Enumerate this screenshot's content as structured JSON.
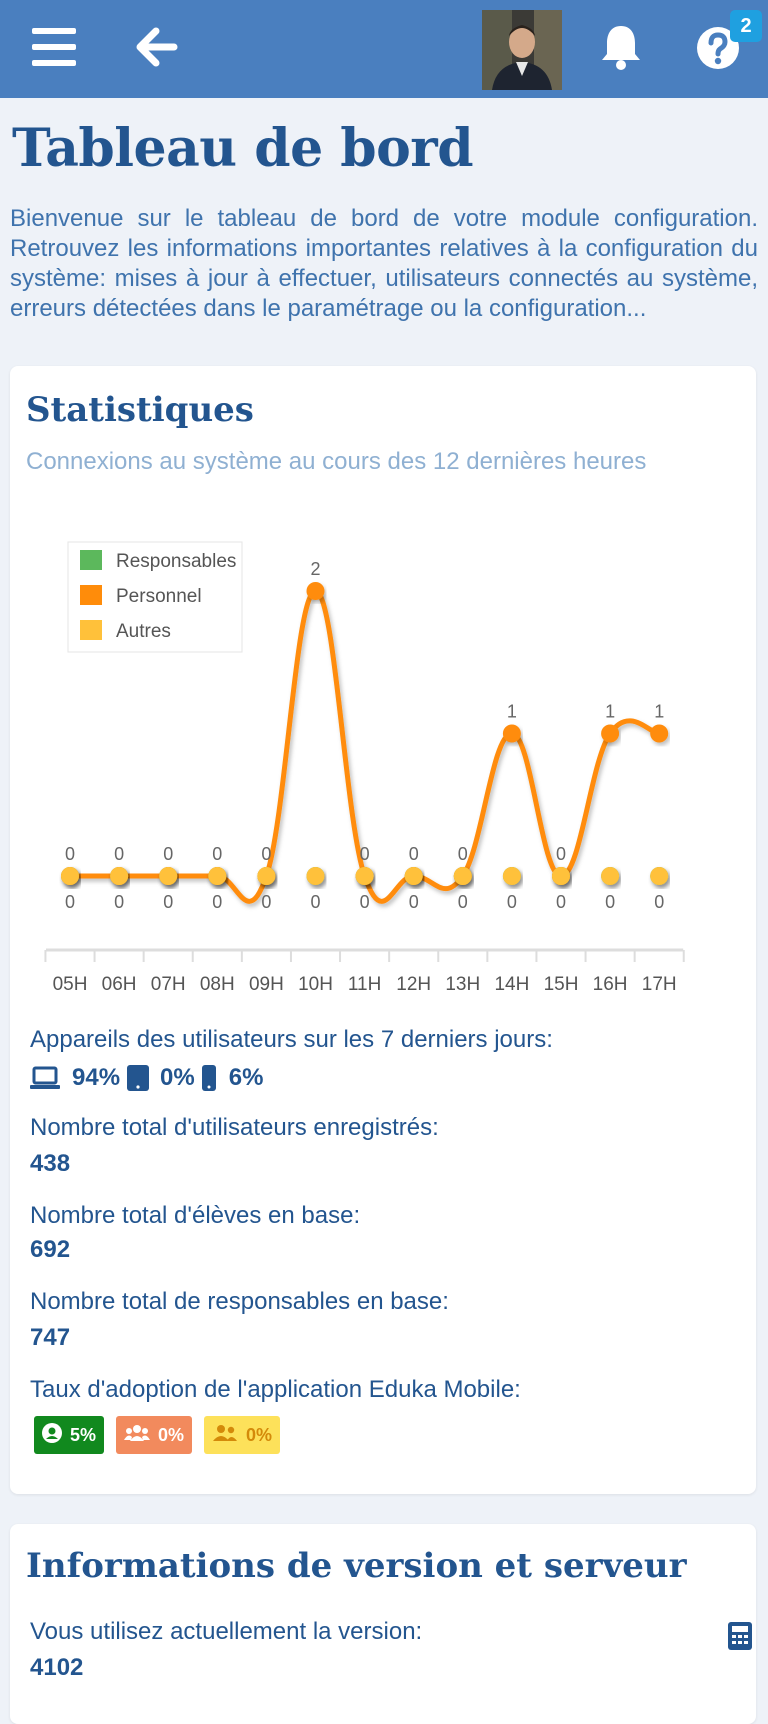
{
  "header": {
    "menu_icon": "hamburger-icon",
    "back_icon": "arrow-left-icon",
    "avatar_icon": "user-avatar",
    "bell_icon": "bell-icon",
    "help_icon": "question-circle-icon",
    "help_badge": "2",
    "color": "#4a7fbf"
  },
  "page": {
    "title": "Tableau de bord",
    "intro": "Bienvenue sur le tableau de bord de votre module configuration. Retrouvez les informations importantes relatives à la configuration du système: mises à jour à effectuer, utilisateurs connectés au système, erreurs détectées dans le paramétrage ou la configuration..."
  },
  "stats": {
    "title": "Statistiques",
    "subtitle": "Connexions au système au cours des 12 dernières heures",
    "devices_label": "Appareils des utilisateurs sur les 7 derniers jours:",
    "devices": [
      {
        "icon": "laptop-icon",
        "value": "94%"
      },
      {
        "icon": "tablet-icon",
        "value": "0%"
      },
      {
        "icon": "smartphone-icon",
        "value": "6%"
      }
    ],
    "users_label": "Nombre total d'utilisateurs enregistrés:",
    "users_value": "438",
    "students_label": "Nombre total d'élèves en base:",
    "students_value": "692",
    "parents_label": "Nombre total de responsables en base:",
    "parents_value": "747",
    "adoption_label": "Taux d'adoption de l'application Eduka Mobile:",
    "adoption": [
      {
        "icon": "user-circle-icon",
        "value": "5%",
        "color": "#11891e"
      },
      {
        "icon": "users-icon",
        "value": "0%",
        "color": "#f28a5d"
      },
      {
        "icon": "user-friends-icon",
        "value": "0%",
        "color": "#fde15a"
      }
    ]
  },
  "chart_data": {
    "type": "line",
    "categories": [
      "05H",
      "06H",
      "07H",
      "08H",
      "09H",
      "10H",
      "11H",
      "12H",
      "13H",
      "14H",
      "15H",
      "16H",
      "17H"
    ],
    "series": [
      {
        "name": "Responsables",
        "color": "#5cb85c",
        "values": [
          0,
          0,
          0,
          0,
          0,
          0,
          0,
          0,
          0,
          0,
          0,
          0,
          0
        ]
      },
      {
        "name": "Personnel",
        "color": "#ff8c0a",
        "values": [
          0,
          0,
          0,
          0,
          0,
          2,
          0,
          0,
          0,
          1,
          0,
          1,
          1
        ]
      },
      {
        "name": "Autres",
        "color": "#ffc13a",
        "values": [
          0,
          0,
          0,
          0,
          0,
          0,
          0,
          0,
          0,
          0,
          0,
          0,
          0
        ]
      }
    ],
    "ylim": [
      0,
      2
    ],
    "legend": "top-left",
    "grid": false,
    "data_labels": true
  },
  "version": {
    "title": "Informations de version et serveur",
    "version_label": "Vous utilisez actuellement la version:",
    "version_value": "4102",
    "calc_icon": "calculator-icon"
  }
}
